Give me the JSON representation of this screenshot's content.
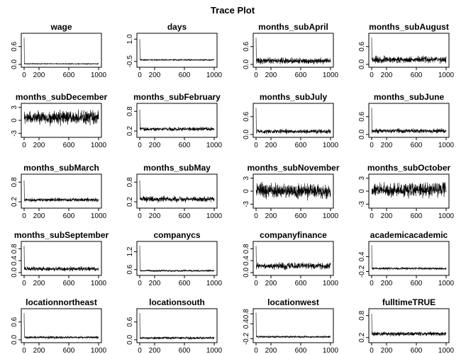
{
  "figure": {
    "title": "Trace Plot"
  },
  "chart_data": [
    {
      "type": "line",
      "title": "wage",
      "xlim": [
        0,
        1000
      ],
      "xticks": [
        0,
        200,
        600,
        1000
      ],
      "ylim": [
        -0.05,
        1.0
      ],
      "yticks": [
        0.0,
        0.6
      ],
      "ytick_labels": [
        "0.0",
        "0.6"
      ],
      "trace": {
        "start": 0.9,
        "level": 0.02,
        "noise": 0.01
      }
    },
    {
      "type": "line",
      "title": "days",
      "xlim": [
        0,
        1000
      ],
      "xticks": [
        0,
        200,
        600,
        1000
      ],
      "ylim": [
        -0.8,
        1.3
      ],
      "yticks": [
        -0.5,
        1.0
      ],
      "ytick_labels": [
        "-0.5",
        "1.0"
      ],
      "trace": {
        "start": 1.0,
        "level": -0.4,
        "noise": 0.03
      }
    },
    {
      "type": "line",
      "title": "months_subApril",
      "xlim": [
        0,
        1000
      ],
      "xticks": [
        0,
        200,
        600,
        1000
      ],
      "ylim": [
        -0.05,
        1.0
      ],
      "yticks": [
        0.0,
        0.6
      ],
      "ytick_labels": [
        "0.0",
        "0.6"
      ],
      "trace": {
        "start": 0.9,
        "level": 0.12,
        "noise": 0.07
      }
    },
    {
      "type": "line",
      "title": "months_subAugust",
      "xlim": [
        0,
        1000
      ],
      "xticks": [
        0,
        200,
        600,
        1000
      ],
      "ylim": [
        -0.05,
        1.0
      ],
      "yticks": [
        0.0,
        0.6
      ],
      "ytick_labels": [
        "0.0",
        "0.6"
      ],
      "trace": {
        "start": 0.9,
        "level": 0.16,
        "noise": 0.08
      }
    },
    {
      "type": "line",
      "title": "months_subDecember",
      "xlim": [
        0,
        1000
      ],
      "xticks": [
        0,
        200,
        600,
        1000
      ],
      "ylim": [
        -3.6,
        3.6
      ],
      "yticks": [
        -3,
        0,
        3
      ],
      "ytick_labels": [
        "-3",
        "0",
        "3"
      ],
      "trace": {
        "start": 0.3,
        "level": 0.6,
        "noise": 1.1
      }
    },
    {
      "type": "line",
      "title": "months_subFebruary",
      "xlim": [
        0,
        1000
      ],
      "xticks": [
        0,
        200,
        600,
        1000
      ],
      "ylim": [
        0.05,
        1.0
      ],
      "yticks": [
        0.2,
        0.8
      ],
      "ytick_labels": [
        "0.2",
        "0.8"
      ],
      "trace": {
        "start": 0.85,
        "level": 0.26,
        "noise": 0.04
      }
    },
    {
      "type": "line",
      "title": "months_subJuly",
      "xlim": [
        0,
        1000
      ],
      "xticks": [
        0,
        200,
        600,
        1000
      ],
      "ylim": [
        -0.05,
        1.0
      ],
      "yticks": [
        0.0,
        0.6
      ],
      "ytick_labels": [
        "0.0",
        "0.6"
      ],
      "trace": {
        "start": 0.9,
        "level": 0.1,
        "noise": 0.05
      }
    },
    {
      "type": "line",
      "title": "months_subJune",
      "xlim": [
        0,
        1000
      ],
      "xticks": [
        0,
        200,
        600,
        1000
      ],
      "ylim": [
        -0.05,
        1.0
      ],
      "yticks": [
        0.0,
        0.6
      ],
      "ytick_labels": [
        "0.0",
        "0.6"
      ],
      "trace": {
        "start": 0.9,
        "level": 0.12,
        "noise": 0.05
      }
    },
    {
      "type": "line",
      "title": "months_subMarch",
      "xlim": [
        0,
        1000
      ],
      "xticks": [
        0,
        200,
        600,
        1000
      ],
      "ylim": [
        0.05,
        1.0
      ],
      "yticks": [
        0.2,
        0.8
      ],
      "ytick_labels": [
        "0.2",
        "0.8"
      ],
      "trace": {
        "start": 0.85,
        "level": 0.26,
        "noise": 0.04
      }
    },
    {
      "type": "line",
      "title": "months_subMay",
      "xlim": [
        0,
        1000
      ],
      "xticks": [
        0,
        200,
        600,
        1000
      ],
      "ylim": [
        0.05,
        1.0
      ],
      "yticks": [
        0.2,
        0.8
      ],
      "ytick_labels": [
        "0.2",
        "0.8"
      ],
      "trace": {
        "start": 0.85,
        "level": 0.28,
        "noise": 0.06
      }
    },
    {
      "type": "line",
      "title": "months_subNovember",
      "xlim": [
        0,
        1000
      ],
      "xticks": [
        0,
        200,
        600,
        1000
      ],
      "ylim": [
        -3.6,
        3.6
      ],
      "yticks": [
        -3,
        0,
        3
      ],
      "ytick_labels": [
        "-3",
        "0",
        "3"
      ],
      "trace": {
        "start": 0.3,
        "level": 0.1,
        "noise": 1.2
      }
    },
    {
      "type": "line",
      "title": "months_subOctober",
      "xlim": [
        0,
        1000
      ],
      "xticks": [
        0,
        200,
        600,
        1000
      ],
      "ylim": [
        -3.6,
        3.6
      ],
      "yticks": [
        -3,
        0,
        3
      ],
      "ytick_labels": [
        "-3",
        "0",
        "3"
      ],
      "trace": {
        "start": 0.3,
        "level": 0.3,
        "noise": 1.1
      }
    },
    {
      "type": "line",
      "title": "months_subSeptember",
      "xlim": [
        0,
        1000
      ],
      "xticks": [
        0,
        200,
        600,
        1000
      ],
      "ylim": [
        -0.05,
        1.0
      ],
      "yticks": [
        0.0,
        0.4,
        0.8
      ],
      "ytick_labels": [
        "0.0",
        "0.4",
        "0.8"
      ],
      "trace": {
        "start": 0.9,
        "level": 0.12,
        "noise": 0.05
      }
    },
    {
      "type": "line",
      "title": "companycs",
      "xlim": [
        0,
        1000
      ],
      "xticks": [
        0,
        200,
        600,
        1000
      ],
      "ylim": [
        0.45,
        1.5
      ],
      "yticks": [
        0.6,
        1.2
      ],
      "ytick_labels": [
        "0.6",
        "1.2"
      ],
      "trace": {
        "start": 1.4,
        "level": 0.56,
        "noise": 0.02
      }
    },
    {
      "type": "line",
      "title": "companyfinance",
      "xlim": [
        0,
        1000
      ],
      "xticks": [
        0,
        200,
        600,
        1000
      ],
      "ylim": [
        -0.05,
        1.0
      ],
      "yticks": [
        0.0,
        0.4,
        0.8
      ],
      "ytick_labels": [
        "0.0",
        "0.4",
        "0.8"
      ],
      "trace": {
        "start": 0.9,
        "level": 0.22,
        "noise": 0.08
      }
    },
    {
      "type": "line",
      "title": "academicacademic",
      "xlim": [
        0,
        1000
      ],
      "xticks": [
        0,
        200,
        600,
        1000
      ],
      "ylim": [
        -0.3,
        0.95
      ],
      "yticks": [
        -0.2,
        0.4
      ],
      "ytick_labels": [
        "-0.2",
        "0.4"
      ],
      "trace": {
        "start": 0.85,
        "level": -0.08,
        "noise": 0.03
      }
    },
    {
      "type": "line",
      "title": "locationnortheast",
      "xlim": [
        0,
        1000
      ],
      "xticks": [
        0,
        200,
        600,
        1000
      ],
      "ylim": [
        -0.05,
        1.0
      ],
      "yticks": [
        0.0,
        0.6
      ],
      "ytick_labels": [
        "0.0",
        "0.6"
      ],
      "trace": {
        "start": 0.9,
        "level": 0.08,
        "noise": 0.03
      }
    },
    {
      "type": "line",
      "title": "locationsouth",
      "xlim": [
        0,
        1000
      ],
      "xticks": [
        0,
        200,
        600,
        1000
      ],
      "ylim": [
        -0.05,
        1.0
      ],
      "yticks": [
        0.0,
        0.6
      ],
      "ytick_labels": [
        "0.0",
        "0.6"
      ],
      "trace": {
        "start": 0.9,
        "level": 0.06,
        "noise": 0.03
      }
    },
    {
      "type": "line",
      "title": "locationwest",
      "xlim": [
        0,
        1000
      ],
      "xticks": [
        0,
        200,
        600,
        1000
      ],
      "ylim": [
        -0.3,
        0.95
      ],
      "yticks": [
        -0.2,
        0.4,
        0.8
      ],
      "ytick_labels": [
        "-0.2",
        "0.4",
        "0.8"
      ],
      "trace": {
        "start": 0.85,
        "level": -0.12,
        "noise": 0.03
      }
    },
    {
      "type": "line",
      "title": "fulltimeTRUE",
      "xlim": [
        0,
        1000
      ],
      "xticks": [
        0,
        200,
        600,
        1000
      ],
      "ylim": [
        0.1,
        0.95
      ],
      "yticks": [
        0.2,
        0.8
      ],
      "ytick_labels": [
        "0.2",
        "0.8"
      ],
      "trace": {
        "start": 0.85,
        "level": 0.3,
        "noise": 0.04
      }
    }
  ]
}
